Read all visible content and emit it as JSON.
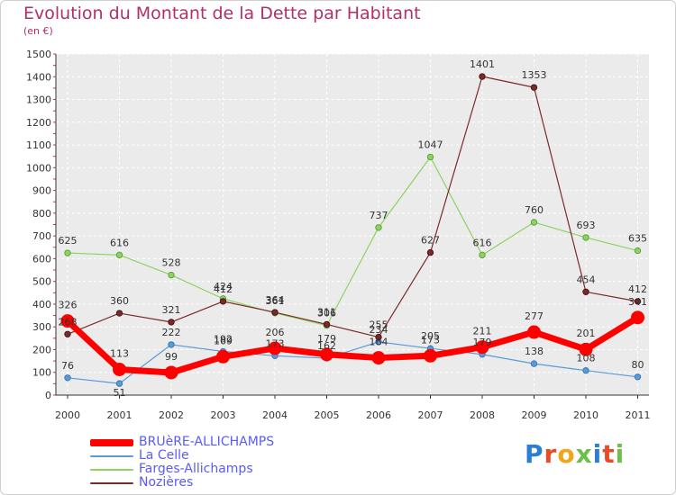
{
  "logo": {
    "text": "Proxiti",
    "colors": [
      "#2a7fd4",
      "#e84b2a",
      "#f2a51b",
      "#6cc04a",
      "#2a7fd4",
      "#e84b2a",
      "#6cc04a"
    ]
  },
  "chart_data": {
    "type": "line",
    "title": "Evolution du Montant de la Dette par Habitant",
    "subtitle": "(en €)",
    "xlabel": "",
    "ylabel": "",
    "x": [
      "2000",
      "2001",
      "2002",
      "2003",
      "2004",
      "2005",
      "2006",
      "2007",
      "2008",
      "2009",
      "2010",
      "2011"
    ],
    "ylim": [
      0,
      1500
    ],
    "yticks": [
      "0",
      "100",
      "200",
      "300",
      "400",
      "500",
      "600",
      "700",
      "800",
      "900",
      "1000",
      "1100",
      "1200",
      "1300",
      "1400",
      "1500"
    ],
    "grid": true,
    "legend_position": "bottom-left",
    "series": [
      {
        "name": "BRUèRE-ALLICHAMPS",
        "color": "#ff0000",
        "values": [
          326,
          113,
          99,
          169,
          206,
          179,
          164,
          173,
          211,
          277,
          201,
          341
        ],
        "labels": [
          "326",
          "113",
          "99",
          "169",
          "206",
          "179",
          "164",
          "173",
          "211",
          "277",
          "201",
          "341"
        ]
      },
      {
        "name": "La Celle",
        "color": "#5b9bd5",
        "values": [
          76,
          51,
          222,
          192,
          173,
          162,
          234,
          205,
          179,
          138,
          108,
          80
        ],
        "labels": [
          "76",
          "51",
          "222",
          "192",
          "173",
          "162",
          "234",
          "205",
          "179",
          "138",
          "108",
          "80"
        ]
      },
      {
        "name": "Farges-Allichamps",
        "color": "#8dd35f",
        "values": [
          625,
          616,
          528,
          424,
          361,
          306,
          null,
          1047,
          616,
          760,
          693,
          635
        ],
        "points": [
          625,
          616,
          528,
          424,
          361,
          306,
          737,
          1047,
          616,
          760,
          693,
          635
        ],
        "labels": [
          "625",
          "616",
          "528",
          "424",
          "361",
          "306",
          "737",
          "1047",
          "616",
          "760",
          "693",
          "635"
        ]
      },
      {
        "name": "Nozières",
        "color": "#7b2a2a",
        "values": [
          268,
          360,
          321,
          412,
          364,
          311,
          255,
          627,
          1401,
          1353,
          454,
          412
        ],
        "labels": [
          "268",
          "360",
          "321",
          "412",
          "364",
          "311",
          "255",
          "627",
          "1401",
          "1353",
          "454",
          "412"
        ]
      }
    ]
  }
}
